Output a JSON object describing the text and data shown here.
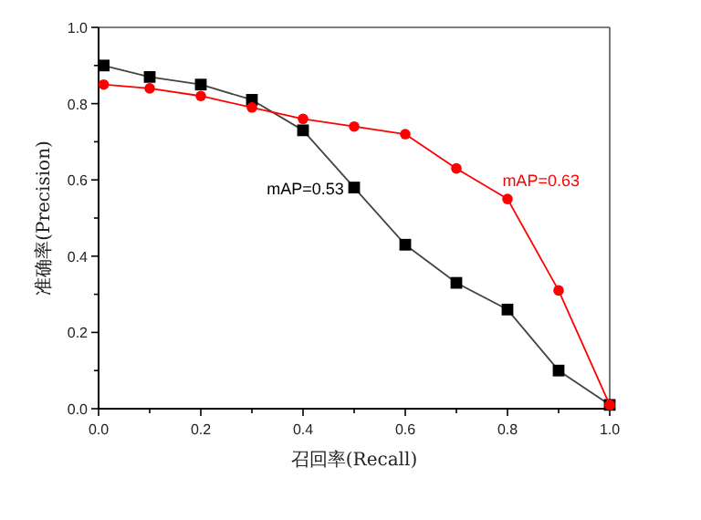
{
  "chart_data": {
    "type": "line",
    "xlabel": "召回率(Recall)",
    "ylabel": "准确率(Precision)",
    "x": [
      0.01,
      0.1,
      0.2,
      0.3,
      0.4,
      0.5,
      0.6,
      0.7,
      0.8,
      0.9,
      1.0
    ],
    "series": [
      {
        "color": "#000000",
        "marker": "square",
        "values": [
          0.9,
          0.87,
          0.85,
          0.81,
          0.73,
          0.58,
          0.43,
          0.33,
          0.26,
          0.1,
          0.01
        ]
      },
      {
        "color": "#ff0000",
        "marker": "circle",
        "values": [
          0.85,
          0.84,
          0.82,
          0.79,
          0.76,
          0.74,
          0.72,
          0.63,
          0.55,
          0.31,
          0.01
        ]
      }
    ],
    "annotations": [
      "mAP=0.53",
      "mAP=0.63"
    ],
    "xlim": [
      0,
      1
    ],
    "ylim": [
      0,
      1
    ],
    "xticks": [
      {
        "value": 0,
        "label": "0.0"
      },
      {
        "value": 0.1,
        "label": null
      },
      {
        "value": 0.2,
        "label": "0.2"
      },
      {
        "value": 0.3,
        "label": null
      },
      {
        "value": 0.4,
        "label": "0.4"
      },
      {
        "value": 0.5,
        "label": null
      },
      {
        "value": 0.6,
        "label": "0.6"
      },
      {
        "value": 0.7,
        "label": null
      },
      {
        "value": 0.8,
        "label": "0.8"
      },
      {
        "value": 0.9,
        "label": null
      },
      {
        "value": 1,
        "label": "1.0"
      }
    ],
    "yticks": [
      {
        "value": 0,
        "label": "0.0"
      },
      {
        "value": 0.1,
        "label": null
      },
      {
        "value": 0.2,
        "label": "0.2"
      },
      {
        "value": 0.3,
        "label": null
      },
      {
        "value": 0.4,
        "label": "0.4"
      },
      {
        "value": 0.5,
        "label": null
      },
      {
        "value": 0.6,
        "label": "0.6"
      },
      {
        "value": 0.7,
        "label": null
      },
      {
        "value": 0.8,
        "label": "0.8"
      },
      {
        "value": 0.9,
        "label": null
      },
      {
        "value": 1,
        "label": "1.0"
      }
    ],
    "grid": false
  }
}
